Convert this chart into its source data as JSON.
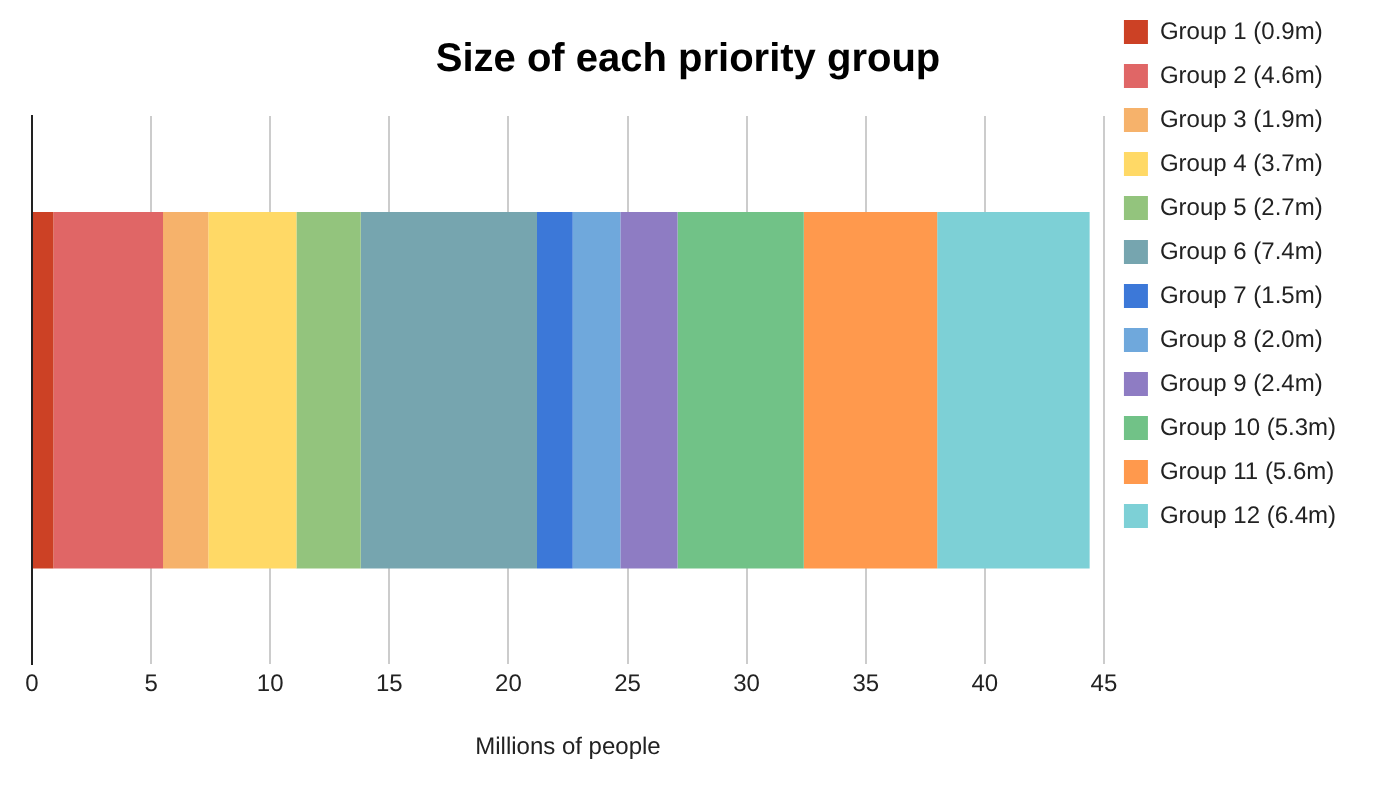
{
  "chart_data": {
    "type": "bar",
    "orientation": "horizontal",
    "stacked": true,
    "title": "Size of each priority group",
    "xlabel": "Millions of people",
    "categories": [
      null
    ],
    "series": [
      {
        "name": "Group 1 (0.9m)",
        "color": "#cc4125",
        "values": [
          0.9
        ]
      },
      {
        "name": "Group 2 (4.6m)",
        "color": "#e06666",
        "values": [
          4.6
        ]
      },
      {
        "name": "Group 3 (1.9m)",
        "color": "#f6b26b",
        "values": [
          1.9
        ]
      },
      {
        "name": "Group 4 (3.7m)",
        "color": "#ffd966",
        "values": [
          3.7
        ]
      },
      {
        "name": "Group 5 (2.7m)",
        "color": "#93c47d",
        "values": [
          2.7
        ]
      },
      {
        "name": "Group 6 (7.4m)",
        "color": "#76a5af",
        "values": [
          7.4
        ]
      },
      {
        "name": "Group 7 (1.5m)",
        "color": "#3c78d8",
        "values": [
          1.5
        ]
      },
      {
        "name": "Group 8 (2.0m)",
        "color": "#6fa8dc",
        "values": [
          2.0
        ]
      },
      {
        "name": "Group 9 (2.4m)",
        "color": "#8e7cc3",
        "values": [
          2.4
        ]
      },
      {
        "name": "Group 10 (5.3m)",
        "color": "#71c287",
        "values": [
          5.3
        ]
      },
      {
        "name": "Group 11 (5.6m)",
        "color": "#ff994d",
        "values": [
          5.6
        ]
      },
      {
        "name": "Group 12 (6.4m)",
        "color": "#7dd0d6",
        "values": [
          6.4
        ]
      }
    ],
    "xlim": [
      0,
      45
    ],
    "xticks": [
      0,
      5,
      10,
      15,
      20,
      25,
      30,
      35,
      40,
      45
    ],
    "grid": "x",
    "legend": "right"
  }
}
